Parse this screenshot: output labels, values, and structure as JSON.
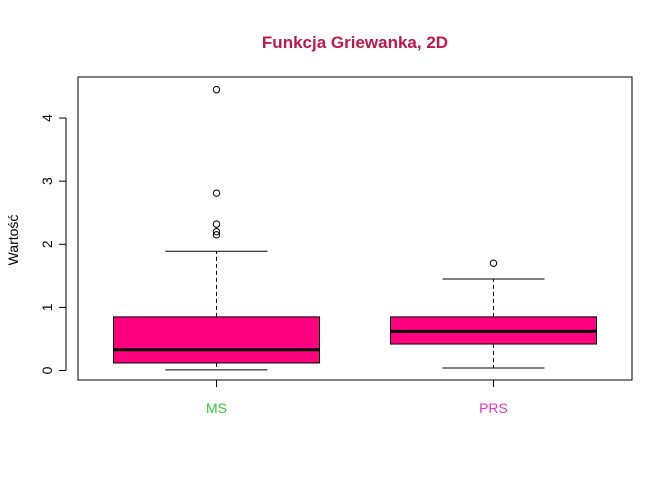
{
  "chart_data": {
    "type": "boxplot",
    "title": "Funkcja Griewanka, 2D",
    "xlabel": "",
    "ylabel": "Wartość",
    "ylim": [
      -0.15,
      4.65
    ],
    "yticks": [
      0,
      1,
      2,
      3,
      4
    ],
    "grid": false,
    "categories": [
      "MS",
      "PRS"
    ],
    "boxes": [
      {
        "category": "MS",
        "whisker_low": 0.01,
        "q1": 0.12,
        "median": 0.33,
        "q3": 0.85,
        "whisker_high": 1.89,
        "outliers": [
          2.15,
          2.2,
          2.32,
          2.81,
          4.45
        ]
      },
      {
        "category": "PRS",
        "whisker_low": 0.04,
        "q1": 0.42,
        "median": 0.62,
        "q3": 0.85,
        "whisker_high": 1.45,
        "outliers": [
          1.7
        ]
      }
    ],
    "colors": {
      "box_fill": "#FF0080",
      "title": "#C0174C",
      "category_labels": [
        "#33CC33",
        "#E633CC"
      ]
    }
  }
}
